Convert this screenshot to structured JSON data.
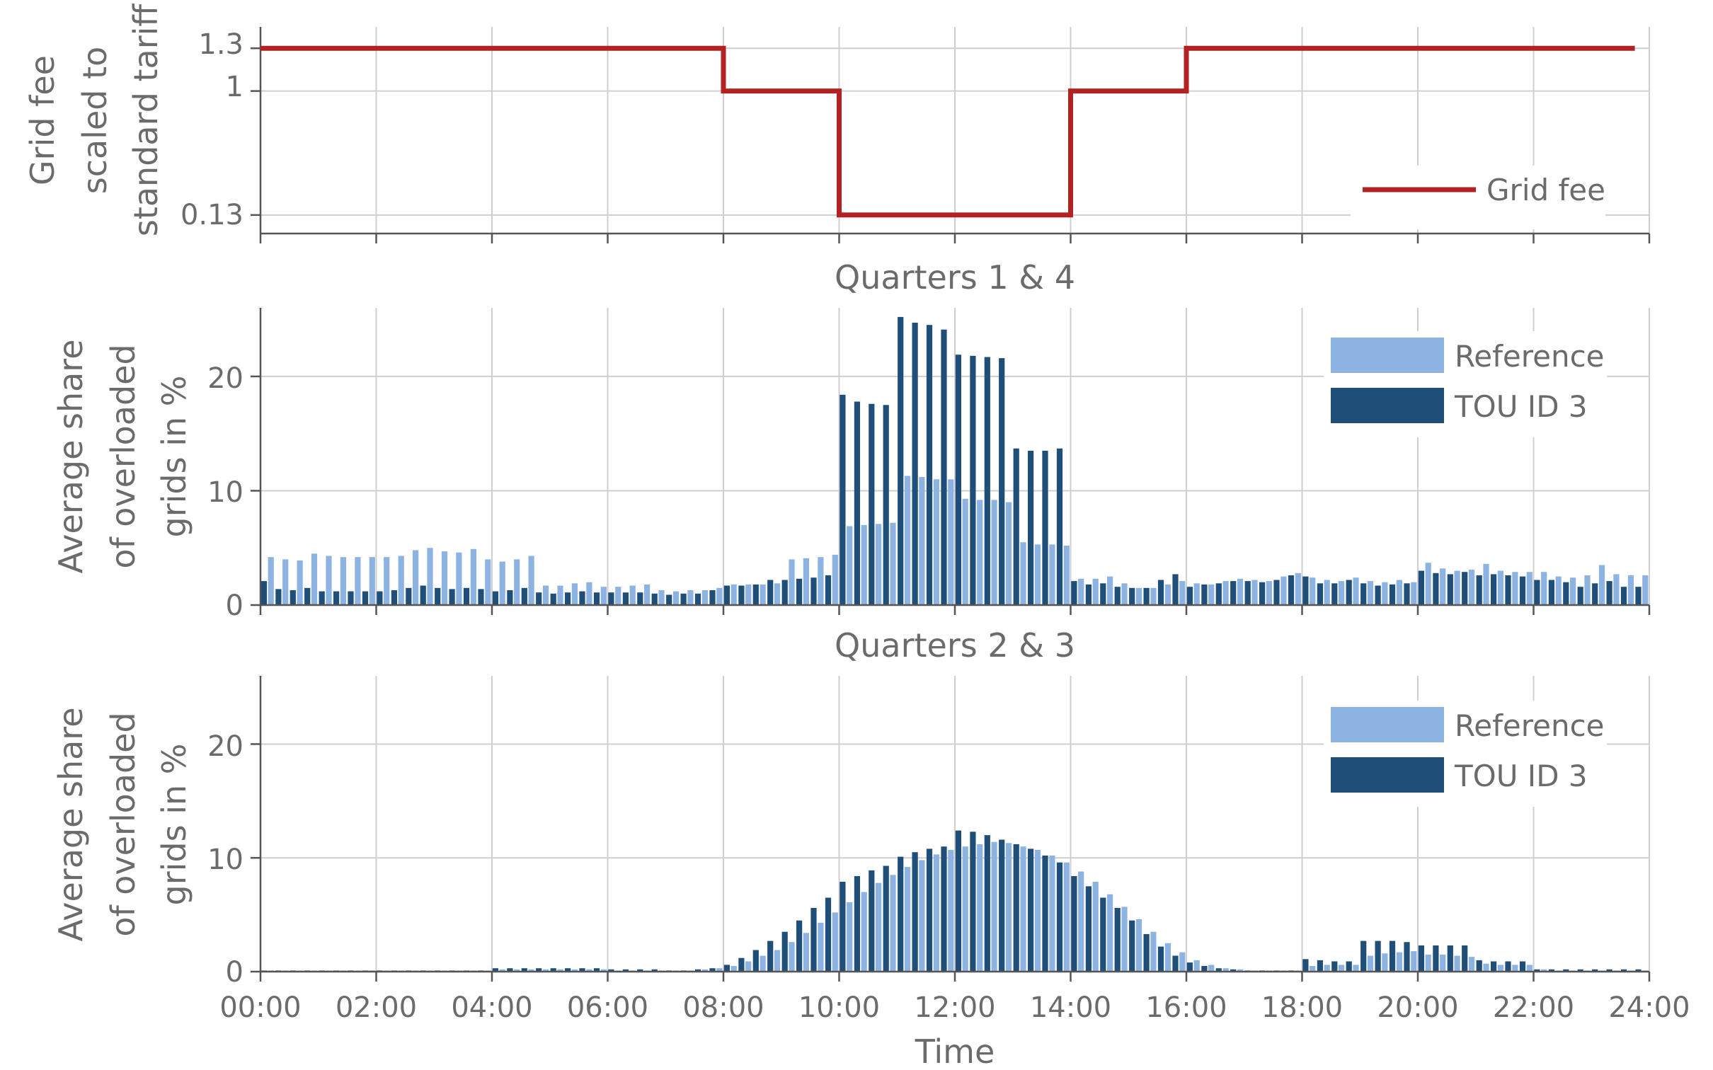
{
  "x_ticks": [
    "00:00",
    "02:00",
    "04:00",
    "06:00",
    "08:00",
    "10:00",
    "12:00",
    "14:00",
    "16:00",
    "18:00",
    "20:00",
    "22:00",
    "24:00"
  ],
  "x_label": "Time",
  "colors": {
    "grid_fee": "#b22222",
    "reference": "#8db3e2",
    "tou": "#1f4e79"
  },
  "chart_data": [
    {
      "type": "line",
      "step": true,
      "ylabel_lines": [
        "Grid fee",
        "scaled to",
        "standard tariff"
      ],
      "y_ticks": [
        "1.3",
        "1",
        "0.13"
      ],
      "ylim": [
        0,
        1.45
      ],
      "xlim": [
        0,
        24
      ],
      "legend_position": "bottom-right",
      "series": [
        {
          "name": "Grid fee",
          "x": [
            0,
            8,
            8,
            10,
            10,
            14,
            14,
            16,
            16,
            23.75
          ],
          "y": [
            1.3,
            1.3,
            1,
            1,
            0.13,
            0.13,
            1,
            1,
            1.3,
            1.3
          ]
        }
      ]
    },
    {
      "type": "bar",
      "title": "Quarters 1 & 4",
      "ylabel_lines": [
        "Average share",
        "of overloaded",
        "grids in %"
      ],
      "y_ticks": [
        "0",
        "10",
        "20"
      ],
      "ylim": [
        0,
        26
      ],
      "xlim": [
        0,
        24
      ],
      "bar_step_hours": 0.25,
      "legend_position": "top-right",
      "series": [
        {
          "name": "Reference",
          "values": [
            4.2,
            4.0,
            3.9,
            4.5,
            4.3,
            4.2,
            4.2,
            4.2,
            4.2,
            4.3,
            4.8,
            5.0,
            4.7,
            4.6,
            4.9,
            4.0,
            3.8,
            4.0,
            4.3,
            1.7,
            1.7,
            1.9,
            2.0,
            1.6,
            1.6,
            1.7,
            1.8,
            1.3,
            1.2,
            1.3,
            1.3,
            1.5,
            1.8,
            1.8,
            1.8,
            1.9,
            4.0,
            4.1,
            4.2,
            4.4,
            6.9,
            7.0,
            7.1,
            7.2,
            11.3,
            11.2,
            11.0,
            11.0,
            9.3,
            9.2,
            9.2,
            9.0,
            5.5,
            5.3,
            5.3,
            5.2,
            2.3,
            2.3,
            2.5,
            1.9,
            1.5,
            1.5,
            1.8,
            2.1,
            1.9,
            1.8,
            2.1,
            2.3,
            2.2,
            2.1,
            2.5,
            2.8,
            2.4,
            2.2,
            2.1,
            2.4,
            2.1,
            2.0,
            2.2,
            2.0,
            3.7,
            3.2,
            3.0,
            3.1,
            3.6,
            3.0,
            2.9,
            2.9,
            2.9,
            2.5,
            2.4,
            2.6,
            3.5,
            2.7,
            2.6,
            2.6
          ]
        },
        {
          "name": "TOU ID 3",
          "values": [
            2.1,
            1.4,
            1.3,
            1.5,
            1.2,
            1.2,
            1.2,
            1.2,
            1.2,
            1.3,
            1.5,
            1.7,
            1.5,
            1.4,
            1.5,
            1.4,
            1.2,
            1.3,
            1.5,
            1.1,
            1.0,
            1.1,
            1.2,
            1.1,
            1.1,
            1.1,
            1.1,
            1.0,
            0.9,
            1.0,
            1.0,
            1.3,
            1.7,
            1.7,
            1.8,
            2.2,
            2.2,
            2.3,
            2.4,
            2.6,
            18.4,
            17.8,
            17.6,
            17.5,
            25.2,
            24.7,
            24.5,
            24.1,
            21.9,
            21.8,
            21.7,
            21.6,
            13.7,
            13.5,
            13.5,
            13.7,
            2.1,
            1.8,
            1.9,
            1.6,
            1.5,
            1.5,
            2.2,
            2.7,
            1.6,
            1.8,
            1.9,
            2.1,
            2.1,
            2.0,
            2.2,
            2.6,
            2.5,
            1.9,
            1.9,
            2.2,
            1.9,
            1.7,
            1.8,
            1.9,
            3.0,
            2.8,
            2.7,
            2.9,
            2.6,
            2.7,
            2.6,
            2.5,
            2.2,
            2.2,
            2.0,
            1.6,
            1.9,
            2.1,
            1.6,
            1.6
          ]
        }
      ]
    },
    {
      "type": "bar",
      "title": "Quarters 2 & 3",
      "ylabel_lines": [
        "Average share",
        "of overloaded",
        "grids in %"
      ],
      "y_ticks": [
        "0",
        "10",
        "20"
      ],
      "ylim": [
        0,
        26
      ],
      "xlim": [
        0,
        24
      ],
      "bar_step_hours": 0.25,
      "legend_position": "top-right",
      "series": [
        {
          "name": "Reference",
          "values": [
            0.1,
            0.1,
            0.1,
            0.1,
            0.1,
            0.1,
            0.1,
            0.1,
            0.1,
            0.1,
            0.1,
            0.1,
            0.1,
            0.1,
            0.1,
            0.1,
            0.2,
            0.2,
            0.2,
            0.2,
            0.2,
            0.2,
            0.2,
            0.2,
            0.1,
            0.1,
            0.1,
            0.1,
            0.1,
            0.1,
            0.2,
            0.3,
            0.5,
            0.9,
            1.4,
            1.9,
            2.6,
            3.4,
            4.3,
            5.2,
            6.1,
            7.0,
            7.8,
            8.5,
            9.2,
            9.8,
            10.3,
            10.7,
            11.0,
            11.2,
            11.4,
            11.3,
            11.0,
            10.7,
            10.2,
            9.6,
            8.8,
            7.9,
            6.8,
            5.7,
            4.6,
            3.5,
            2.5,
            1.7,
            1.0,
            0.6,
            0.3,
            0.2,
            0.1,
            0.1,
            0.1,
            0.1,
            0.5,
            0.6,
            0.6,
            0.6,
            1.4,
            1.6,
            1.7,
            1.8,
            1.5,
            1.5,
            1.4,
            1.3,
            0.7,
            0.6,
            0.6,
            0.6,
            0.2,
            0.1,
            0.1,
            0.1,
            0.1,
            0.1,
            0.1,
            0.1
          ]
        },
        {
          "name": "TOU ID 3",
          "values": [
            0.1,
            0.1,
            0.1,
            0.1,
            0.1,
            0.1,
            0.1,
            0.1,
            0.1,
            0.1,
            0.1,
            0.1,
            0.1,
            0.1,
            0.1,
            0.1,
            0.3,
            0.3,
            0.3,
            0.3,
            0.3,
            0.3,
            0.3,
            0.3,
            0.2,
            0.2,
            0.2,
            0.2,
            0.1,
            0.1,
            0.2,
            0.3,
            0.6,
            1.2,
            1.9,
            2.7,
            3.5,
            4.5,
            5.6,
            6.5,
            7.9,
            8.4,
            8.9,
            9.3,
            10.1,
            10.5,
            10.8,
            11.0,
            12.4,
            12.3,
            12.0,
            11.6,
            11.2,
            10.8,
            10.2,
            9.6,
            8.4,
            7.5,
            6.5,
            5.6,
            4.5,
            3.3,
            2.2,
            1.4,
            0.8,
            0.5,
            0.3,
            0.2,
            0.1,
            0.1,
            0.1,
            0.1,
            1.1,
            1.0,
            0.9,
            0.9,
            2.7,
            2.7,
            2.7,
            2.6,
            2.3,
            2.3,
            2.3,
            2.3,
            1.0,
            0.9,
            0.9,
            0.9,
            0.2,
            0.2,
            0.2,
            0.2,
            0.2,
            0.2,
            0.2,
            0.2
          ]
        }
      ]
    }
  ]
}
